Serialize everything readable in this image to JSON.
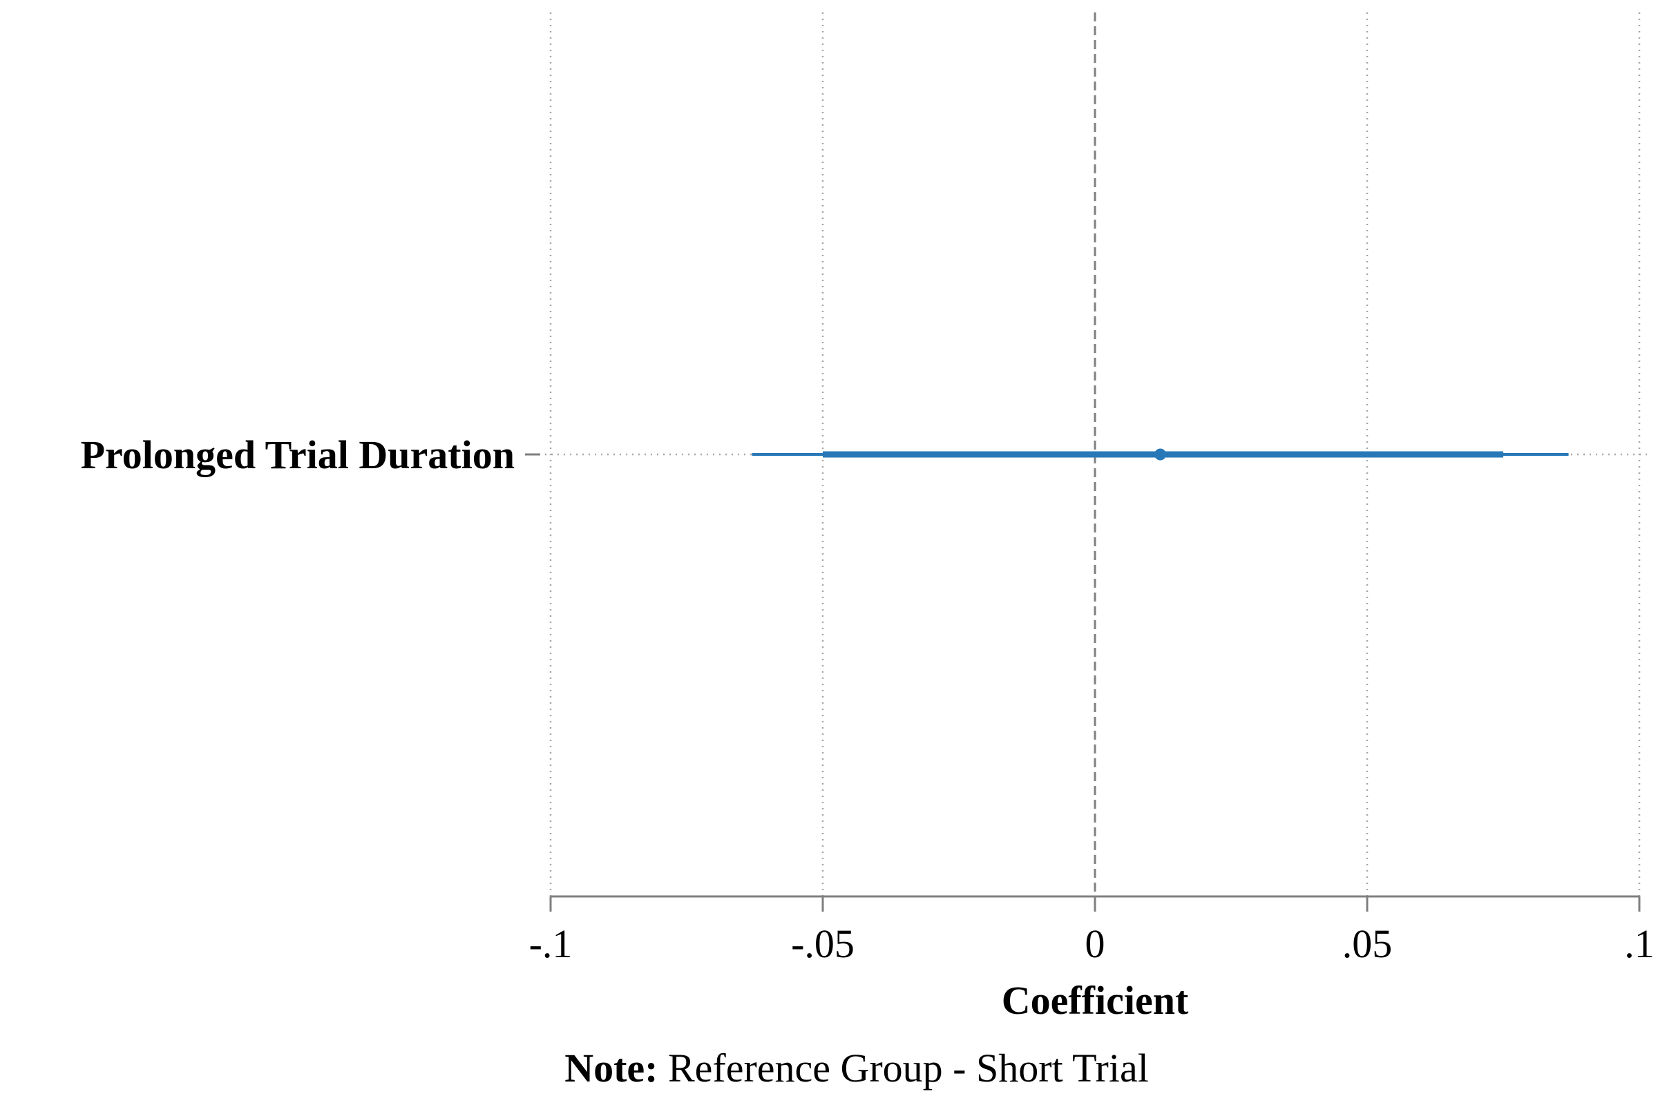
{
  "chart_data": {
    "type": "coefficient_plot",
    "xlabel": "Coefficient",
    "xlim": [
      -0.1,
      0.1
    ],
    "xticks": [
      -0.1,
      -0.05,
      0,
      0.05,
      0.1
    ],
    "xtick_labels": [
      "-.1",
      "-.05",
      "0",
      ".05",
      ".1"
    ],
    "reference_line": 0,
    "grid": "vertical dotted",
    "series": [
      {
        "label": "Prolonged Trial Duration",
        "estimate": 0.012,
        "ci_inner": [
          -0.05,
          0.075
        ],
        "ci_outer": [
          -0.063,
          0.087
        ]
      }
    ]
  },
  "note": {
    "label": "Note:",
    "text": " Reference Group - Short Trial"
  },
  "colors": {
    "series": "#2878b8",
    "axis": "#7f7f7f",
    "grid": "#a6a6a6",
    "reference": "#7f7f7f"
  }
}
